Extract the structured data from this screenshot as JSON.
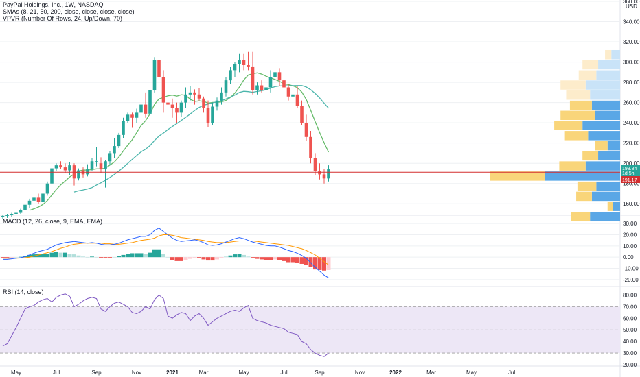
{
  "chart_data": [
    {
      "type": "candlestick",
      "title": "PayPal Holdings, Inc., 1W, NASDAQ",
      "indicators": [
        "SMAs (8, 21, 50, 200, close, close, close, close)",
        "VPVR (Number Of Rows, 24, Up/Down, 70)"
      ],
      "currency": "USD",
      "ylim": [
        150,
        360
      ],
      "y_ticks": [
        "360.00",
        "340.00",
        "320.00",
        "300.00",
        "280.00",
        "260.00",
        "240.00",
        "220.00",
        "200.00",
        "180.00",
        "160.00"
      ],
      "price_label": "193.84",
      "countdown_label": "1d 5h",
      "reference_label": "191.17",
      "reference_line": 191.17,
      "candles": [
        [
          148,
          149,
          145,
          148
        ],
        [
          148,
          150,
          146,
          149
        ],
        [
          149,
          151,
          147,
          150
        ],
        [
          150,
          152,
          147,
          151
        ],
        [
          151,
          155,
          150,
          154
        ],
        [
          154,
          160,
          152,
          159
        ],
        [
          159,
          165,
          156,
          163
        ],
        [
          163,
          168,
          159,
          166
        ],
        [
          166,
          170,
          160,
          162
        ],
        [
          162,
          172,
          160,
          170
        ],
        [
          170,
          182,
          168,
          180
        ],
        [
          180,
          198,
          178,
          195
        ],
        [
          195,
          200,
          192,
          198
        ],
        [
          198,
          202,
          194,
          196
        ],
        [
          196,
          200,
          190,
          193
        ],
        [
          193,
          201,
          188,
          198
        ],
        [
          198,
          200,
          178,
          185
        ],
        [
          185,
          195,
          183,
          193
        ],
        [
          193,
          196,
          186,
          189
        ],
        [
          189,
          199,
          187,
          194
        ],
        [
          194,
          205,
          192,
          202
        ],
        [
          202,
          216,
          197,
          202
        ],
        [
          200,
          206,
          190,
          194
        ],
        [
          194,
          203,
          176,
          202
        ],
        [
          202,
          212,
          198,
          210
        ],
        [
          210,
          225,
          205,
          217
        ],
        [
          217,
          230,
          215,
          228
        ],
        [
          228,
          245,
          225,
          242
        ],
        [
          242,
          250,
          240,
          248
        ],
        [
          248,
          250,
          235,
          245
        ],
        [
          245,
          254,
          240,
          250
        ],
        [
          250,
          265,
          248,
          258
        ],
        [
          258,
          270,
          245,
          249
        ],
        [
          249,
          275,
          245,
          272
        ],
        [
          272,
          305,
          270,
          302
        ],
        [
          302,
          310,
          268,
          285
        ],
        [
          285,
          292,
          250,
          260
        ],
        [
          260,
          268,
          245,
          258
        ],
        [
          258,
          264,
          245,
          255
        ],
        [
          255,
          260,
          240,
          250
        ],
        [
          250,
          262,
          246,
          260
        ],
        [
          260,
          275,
          255,
          268
        ],
        [
          268,
          276,
          262,
          270
        ],
        [
          270,
          273,
          258,
          268
        ],
        [
          268,
          274,
          262,
          264
        ],
        [
          264,
          266,
          250,
          255
        ],
        [
          255,
          262,
          236,
          240
        ],
        [
          240,
          260,
          238,
          256
        ],
        [
          256,
          265,
          252,
          262
        ],
        [
          262,
          275,
          258,
          270
        ],
        [
          270,
          285,
          266,
          282
        ],
        [
          282,
          295,
          278,
          292
        ],
        [
          292,
          300,
          285,
          298
        ],
        [
          298,
          308,
          290,
          302
        ],
        [
          302,
          308,
          292,
          297
        ],
        [
          297,
          310,
          292,
          295
        ],
        [
          295,
          310,
          268,
          272
        ],
        [
          272,
          280,
          268,
          277
        ],
        [
          277,
          282,
          270,
          272
        ],
        [
          272,
          278,
          266,
          275
        ],
        [
          275,
          292,
          270,
          285
        ],
        [
          285,
          296,
          282,
          290
        ],
        [
          290,
          294,
          276,
          282
        ],
        [
          282,
          286,
          270,
          275
        ],
        [
          275,
          278,
          262,
          266
        ],
        [
          266,
          272,
          258,
          268
        ],
        [
          268,
          276,
          255,
          257
        ],
        [
          257,
          262,
          238,
          240
        ],
        [
          240,
          248,
          222,
          226
        ],
        [
          226,
          232,
          200,
          205
        ],
        [
          205,
          210,
          188,
          192
        ],
        [
          192,
          200,
          184,
          189
        ],
        [
          189,
          194,
          180,
          185
        ],
        [
          185,
          198,
          182,
          194
        ]
      ],
      "date_ticks": [
        "May",
        "Jul",
        "Sep",
        "Nov",
        "2021",
        "Mar",
        "May",
        "Jul",
        "Sep",
        "Nov",
        "2022",
        "Mar",
        "May",
        "Jul"
      ],
      "date_tick_index": [
        3,
        12,
        21,
        30,
        38,
        45,
        54,
        63,
        71,
        80,
        88,
        96,
        105,
        114
      ],
      "total_slots": 120
    },
    {
      "type": "line",
      "title": "MACD (12, 26, close, 9, EMA, EMA)",
      "ylim": [
        -25,
        35
      ],
      "y_ticks": [
        "30.00",
        "20.00",
        "10.00",
        "0.00",
        "-10.00",
        "-20.00"
      ],
      "series": [
        {
          "name": "MACD",
          "color": "#2962ff",
          "values": [
            -2,
            -2,
            -1.5,
            -1,
            -0.5,
            0.5,
            2,
            3.5,
            5,
            6,
            7,
            9,
            11,
            12,
            13,
            13.5,
            14,
            13.5,
            13,
            12.5,
            13,
            12.5,
            11.5,
            11,
            11,
            11.5,
            12.5,
            14,
            15.5,
            16.5,
            17.5,
            18.5,
            18.5,
            20,
            24,
            26,
            23,
            20,
            17,
            15,
            14,
            14.5,
            15,
            15.5,
            14.5,
            13,
            11,
            10.5,
            11,
            12,
            13.5,
            15,
            16.5,
            17.5,
            16.5,
            15,
            13.5,
            12.5,
            11.5,
            10.5,
            10,
            10,
            9,
            7.5,
            6,
            5,
            3.5,
            1.5,
            -1,
            -5,
            -9,
            -12.5,
            -16,
            -18.5
          ]
        },
        {
          "name": "Signal",
          "color": "#ff9800",
          "values": [
            -1,
            -1,
            -1,
            -1,
            -0.8,
            -0.5,
            0,
            1,
            2,
            3,
            4,
            5,
            6.5,
            8,
            9,
            10.5,
            11.5,
            12,
            12.5,
            12.5,
            12.5,
            12.5,
            12.5,
            12,
            12,
            11.5,
            11.5,
            12,
            12.5,
            13,
            14,
            15,
            15.5,
            16,
            17,
            19,
            20,
            20,
            19.5,
            18.5,
            17.5,
            17,
            16.5,
            16,
            15.5,
            15,
            14,
            13.5,
            13,
            13,
            13,
            13.5,
            14,
            14.5,
            14.5,
            14.5,
            14.5,
            14,
            13.5,
            13,
            12.5,
            12,
            11.5,
            11,
            10.5,
            9.5,
            8.5,
            7.5,
            6,
            4,
            2,
            -1,
            -4,
            -7
          ]
        }
      ]
    },
    {
      "type": "line",
      "title": "RSI (14, close)",
      "ylim": [
        20,
        85
      ],
      "y_ticks": [
        "80.00",
        "70.00",
        "60.00",
        "50.00",
        "40.00",
        "30.00",
        "20.00"
      ],
      "bands": [
        30,
        50,
        70
      ],
      "series": [
        {
          "name": "RSI",
          "color": "#7e57c2",
          "values": [
            36,
            38,
            45,
            52,
            60,
            68,
            70,
            71,
            74,
            76,
            77,
            74,
            78,
            80,
            81,
            79,
            70,
            72,
            75,
            77,
            78,
            77,
            68,
            66,
            70,
            73,
            74,
            72,
            70,
            65,
            64,
            66,
            70,
            68,
            76,
            80,
            77,
            62,
            60,
            63,
            65,
            64,
            58,
            62,
            64,
            60,
            54,
            57,
            60,
            62,
            64,
            66,
            67,
            66,
            69,
            71,
            60,
            58,
            57,
            56,
            54,
            53,
            52,
            51,
            48,
            47,
            46,
            40,
            38,
            33,
            30,
            28,
            27,
            30
          ]
        }
      ]
    }
  ],
  "vpvr": [
    {
      "price": 307,
      "up": 10,
      "down": 14
    },
    {
      "price": 297,
      "up": 25,
      "down": 35
    },
    {
      "price": 287,
      "up": 28,
      "down": 38
    },
    {
      "price": 277,
      "up": 40,
      "down": 55
    },
    {
      "price": 267,
      "up": 38,
      "down": 48
    },
    {
      "price": 257,
      "up": 35,
      "down": 45
    },
    {
      "price": 247,
      "up": 55,
      "down": 40
    },
    {
      "price": 237,
      "up": 45,
      "down": 60
    },
    {
      "price": 227,
      "up": 38,
      "down": 50
    },
    {
      "price": 217,
      "up": 20,
      "down": 20
    },
    {
      "price": 207,
      "up": 25,
      "down": 35
    },
    {
      "price": 197,
      "up": 42,
      "down": 55
    },
    {
      "price": 187,
      "up": 88,
      "down": 120
    },
    {
      "price": 177,
      "up": 30,
      "down": 38
    },
    {
      "price": 167,
      "up": 25,
      "down": 45
    },
    {
      "price": 157,
      "up": 8,
      "down": 12
    },
    {
      "price": 147,
      "up": 30,
      "down": 48
    }
  ],
  "colors": {
    "up": "#26a69a",
    "down": "#ef5350",
    "sma_short": "#66bb6a",
    "sma_long": "#4db6ac",
    "macd_pos": "#26a69a",
    "macd_pos_light": "#b2dfdb",
    "macd_neg": "#ef5350",
    "macd_neg_light": "#ffcdd2",
    "vp_up": "#f9d57a",
    "vp_down": "#5aa7e6",
    "vp_up_light": "#fdeccb",
    "vp_down_light": "#c9e3f8",
    "ref_line": "#d32f2f",
    "grid": "#eef0f3"
  }
}
